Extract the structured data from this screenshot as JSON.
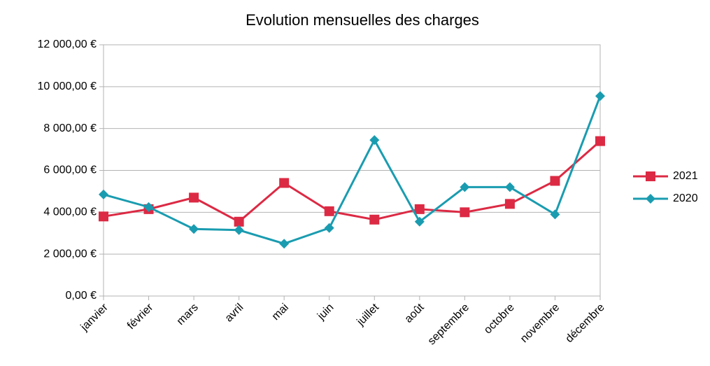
{
  "chart_data": {
    "type": "line",
    "title": "Evolution mensuelles des charges",
    "categories": [
      "janvier",
      "février",
      "mars",
      "avril",
      "mai",
      "juin",
      "juillet",
      "août",
      "septembre",
      "octobre",
      "novembre",
      "décembre"
    ],
    "series": [
      {
        "name": "2021",
        "color": "#dc2a44",
        "marker": "square",
        "values": [
          3800,
          4150,
          4700,
          3550,
          5400,
          4050,
          3650,
          4150,
          4000,
          4400,
          5500,
          7400
        ]
      },
      {
        "name": "2020",
        "color": "#1a9cb0",
        "marker": "diamond",
        "values": [
          4850,
          4250,
          3200,
          3150,
          2500,
          3250,
          7450,
          3550,
          5200,
          5200,
          3900,
          9550
        ]
      }
    ],
    "ylim": [
      0,
      12000
    ],
    "yticks": [
      {
        "value": 0,
        "label": "0,00 €"
      },
      {
        "value": 2000,
        "label": "2 000,00 €"
      },
      {
        "value": 4000,
        "label": "4 000,00 €"
      },
      {
        "value": 6000,
        "label": "6 000,00 €"
      },
      {
        "value": 8000,
        "label": "8 000,00 €"
      },
      {
        "value": 10000,
        "label": "10 000,00 €"
      },
      {
        "value": 12000,
        "label": "12 000,00 €"
      }
    ],
    "grid": true,
    "legend": "right"
  }
}
